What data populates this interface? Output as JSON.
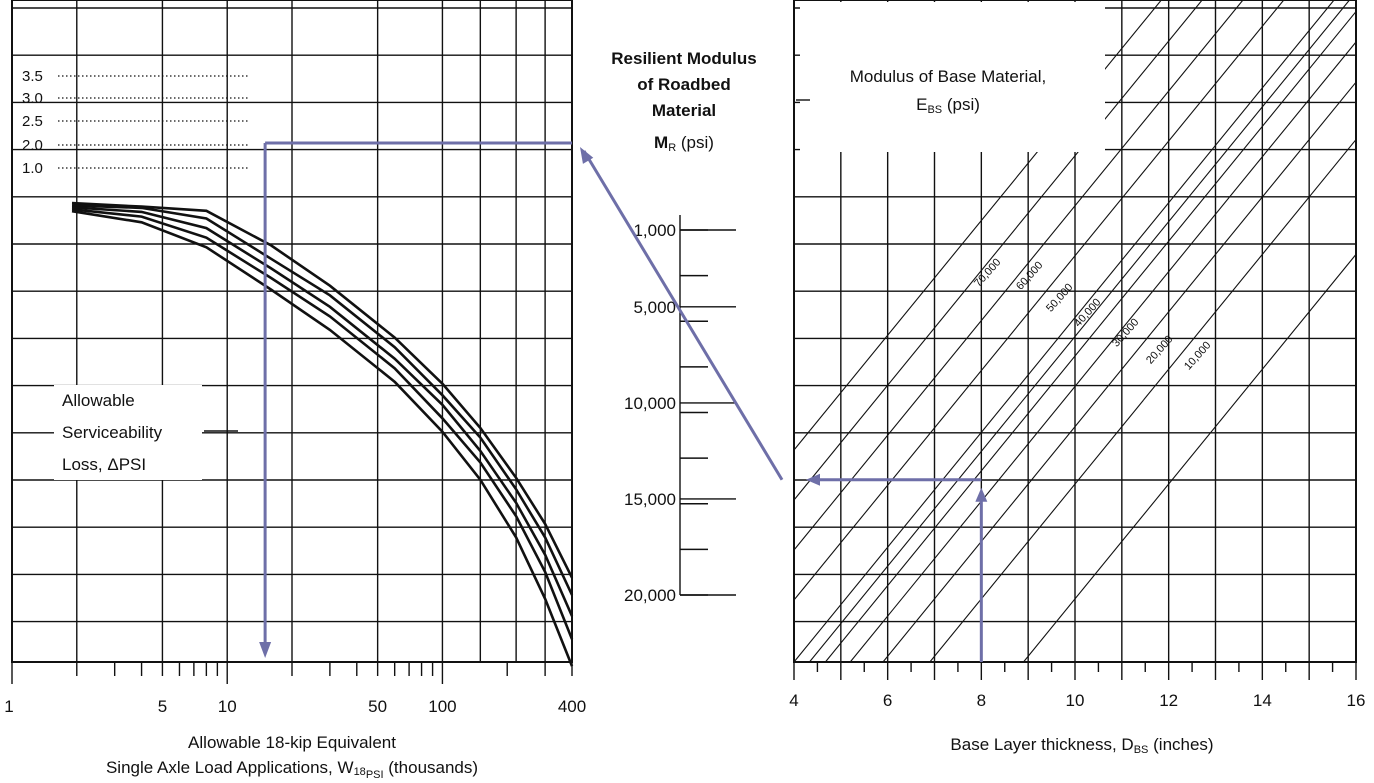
{
  "chart_data": [
    {
      "type": "line",
      "panel": "left",
      "xlabel_line1": "Allowable 18-kip Equivalent",
      "xlabel_line2_main": "Single Axle Load Applications, W",
      "xlabel_line2_sub": "18",
      "xlabel_line2_subsub": "PSI",
      "xlabel_line2_tail": " (thousands)",
      "x_scale": "log",
      "xlim": [
        1,
        400
      ],
      "x_tick_labels": [
        "1",
        "5",
        "10",
        "50",
        "100",
        "400"
      ],
      "curve_annotation": [
        "Allowable",
        "Serviceability",
        "Loss, ΔPSI"
      ],
      "series_labels": [
        "3.5",
        "3.0",
        "2.5",
        "2.0",
        "1.0"
      ],
      "series": [
        {
          "name": "3.5",
          "x": [
            1.9,
            4,
            8,
            16,
            30,
            60,
            100,
            150,
            220,
            300,
            400
          ],
          "y_mr": [
            -400,
            -220,
            0,
            1800,
            3900,
            6600,
            9000,
            11300,
            13900,
            16300,
            19100
          ]
        },
        {
          "name": "3.0",
          "x": [
            1.9,
            4,
            8,
            16,
            30,
            60,
            100,
            150,
            220,
            300,
            400
          ],
          "y_mr": [
            -280,
            -150,
            400,
            2500,
            4400,
            7100,
            9600,
            11800,
            14500,
            17000,
            20000
          ]
        },
        {
          "name": "2.5",
          "x": [
            1.9,
            4,
            8,
            16,
            30,
            60,
            100,
            150,
            220,
            300,
            400
          ],
          "y_mr": [
            -180,
            60,
            900,
            3000,
            5000,
            7700,
            10100,
            12500,
            15200,
            17900,
            21100
          ]
        },
        {
          "name": "2.0",
          "x": [
            1.9,
            4,
            8,
            16,
            30,
            60,
            100,
            150,
            220,
            300,
            400
          ],
          "y_mr": [
            -80,
            300,
            1400,
            3500,
            5500,
            8200,
            10800,
            13100,
            15900,
            18800,
            22300
          ]
        },
        {
          "name": "1.0",
          "x": [
            1.9,
            4,
            8,
            16,
            30,
            60,
            100,
            150,
            220,
            300,
            400
          ],
          "y_mr": [
            20,
            600,
            1900,
            4100,
            6200,
            8900,
            11500,
            14000,
            17000,
            20200,
            23700
          ]
        }
      ]
    },
    {
      "type": "scale",
      "panel": "middle",
      "title_lines": [
        "Resilient Modulus",
        "of Roadbed",
        "Material"
      ],
      "unit_main": "M",
      "unit_sub": "R",
      "unit_tail": " (psi)",
      "tick_labels": [
        "1,000",
        "5,000",
        "10,000",
        "15,000",
        "20,000"
      ],
      "ylim": [
        1000,
        20000
      ]
    },
    {
      "type": "line",
      "panel": "right",
      "legend_title_line1": "Modulus of Base Material,",
      "legend_title_line2_main": "E",
      "legend_title_line2_sub": "BS",
      "legend_title_line2_tail": " (psi)",
      "xlabel_main": "Base Layer thickness, D",
      "xlabel_sub": "BS",
      "xlabel_tail": " (inches)",
      "xlim": [
        4,
        16
      ],
      "x_tick_labels": [
        "4",
        "6",
        "8",
        "10",
        "12",
        "14",
        "16"
      ],
      "series_labels": [
        "70,000",
        "60,000",
        "50,000",
        "40,000",
        "30,000",
        "20,000",
        "10,000"
      ],
      "series": [
        {
          "name": "70,000",
          "x0": 4.0,
          "slope_mr_per_in": -3040
        },
        {
          "name": "60,000",
          "x0": 4.33,
          "slope_mr_per_in": -3040
        },
        {
          "name": "50,000",
          "x0": 4.67,
          "slope_mr_per_in": -3040
        },
        {
          "name": "40,000",
          "x0": 5.2,
          "slope_mr_per_in": -3040
        },
        {
          "name": "30,000",
          "x0": 5.9,
          "slope_mr_per_in": -3040
        },
        {
          "name": "20,000",
          "x0": 6.9,
          "slope_mr_per_in": -3040
        },
        {
          "name": "10,000",
          "x0": 8.9,
          "slope_mr_per_in": -3040
        }
      ]
    }
  ],
  "example_path": {
    "base_thickness_in": 8,
    "roadbed_modulus_psi": 14000,
    "serviceability_loss": "2.0",
    "w18_thousands": 15
  },
  "colors": {
    "ink": "#111111",
    "example_path": "#6e6fa8",
    "background": "#ffffff"
  }
}
